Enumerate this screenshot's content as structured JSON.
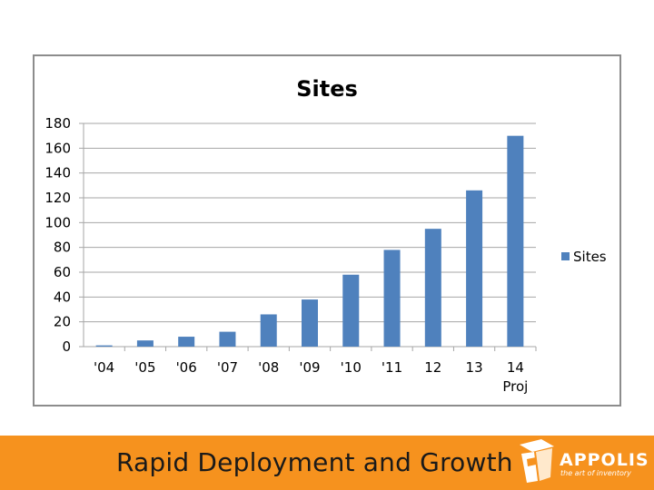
{
  "chart_data": {
    "type": "bar",
    "title": "Sites",
    "categories": [
      "'04",
      "'05",
      "'06",
      "'07",
      "'08",
      "'09",
      "'10",
      "'11",
      "12",
      "13",
      "14 Proj"
    ],
    "category_lines": [
      [
        "'04"
      ],
      [
        "'05"
      ],
      [
        "'06"
      ],
      [
        "'07"
      ],
      [
        "'08"
      ],
      [
        "'09"
      ],
      [
        "'10"
      ],
      [
        "'11"
      ],
      [
        "12"
      ],
      [
        "13"
      ],
      [
        "14",
        "Proj"
      ]
    ],
    "series": [
      {
        "name": "Sites",
        "values": [
          1,
          5,
          8,
          12,
          26,
          38,
          58,
          78,
          95,
          126,
          170
        ]
      }
    ],
    "ylim": [
      0,
      180
    ],
    "yticks": [
      "0",
      "20",
      "40",
      "60",
      "80",
      "100",
      "120",
      "140",
      "160",
      "180"
    ],
    "grid": true,
    "legend_position": "right",
    "bar_color": "#4f81bd"
  },
  "footer": {
    "title": "Rapid Deployment and Growth",
    "logo_name": "APPOLIS",
    "logo_tagline": "the art of inventory",
    "bar_color": "#f6921e"
  }
}
